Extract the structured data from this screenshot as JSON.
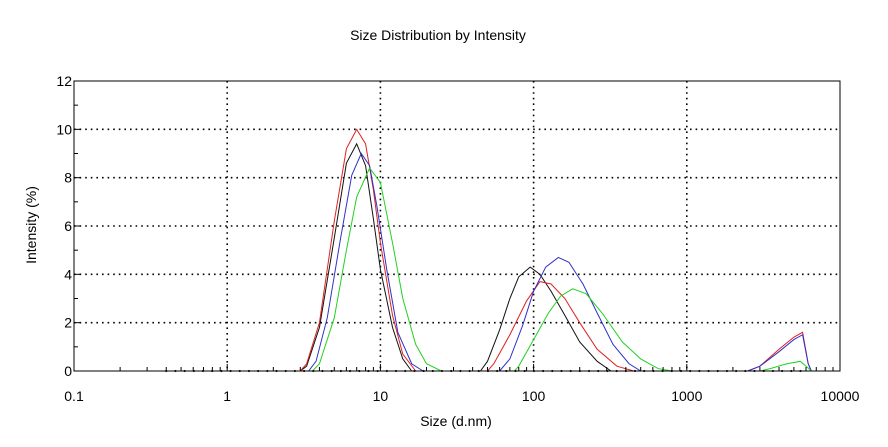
{
  "chart_data": {
    "type": "line",
    "title": "Size Distribution by Intensity",
    "xlabel": "Size (d.nm)",
    "ylabel": "Intensity (%)",
    "x_scale": "log",
    "xlim": [
      0.1,
      10000
    ],
    "ylim": [
      0,
      12
    ],
    "x_ticks": [
      {
        "value": 0.1,
        "label": "0.1"
      },
      {
        "value": 1,
        "label": "1"
      },
      {
        "value": 10,
        "label": "10"
      },
      {
        "value": 100,
        "label": "100"
      },
      {
        "value": 1000,
        "label": "1000"
      },
      {
        "value": 10000,
        "label": "10000"
      }
    ],
    "y_ticks": [
      {
        "value": 0,
        "label": "0"
      },
      {
        "value": 2,
        "label": "2"
      },
      {
        "value": 4,
        "label": "4"
      },
      {
        "value": 6,
        "label": "6"
      },
      {
        "value": 8,
        "label": "8"
      },
      {
        "value": 10,
        "label": "10"
      },
      {
        "value": 12,
        "label": "12"
      }
    ],
    "grid": true,
    "series": [
      {
        "color": "#111111",
        "points": [
          [
            0.4,
            0
          ],
          [
            3,
            0
          ],
          [
            3.3,
            0.2
          ],
          [
            4,
            1.8
          ],
          [
            5,
            5.5
          ],
          [
            6,
            8.6
          ],
          [
            7,
            9.4
          ],
          [
            8,
            8.5
          ],
          [
            9,
            6.3
          ],
          [
            10,
            4.2
          ],
          [
            12,
            1.8
          ],
          [
            14,
            0.5
          ],
          [
            16,
            0
          ],
          [
            45,
            0
          ],
          [
            50,
            0.4
          ],
          [
            60,
            1.7
          ],
          [
            70,
            3.0
          ],
          [
            80,
            3.9
          ],
          [
            95,
            4.3
          ],
          [
            110,
            4.0
          ],
          [
            130,
            3.3
          ],
          [
            160,
            2.3
          ],
          [
            200,
            1.2
          ],
          [
            260,
            0.4
          ],
          [
            320,
            0
          ]
        ]
      },
      {
        "color": "#e02020",
        "points": [
          [
            0.4,
            0
          ],
          [
            3,
            0
          ],
          [
            3.3,
            0.3
          ],
          [
            4,
            2.0
          ],
          [
            5,
            6.2
          ],
          [
            6,
            9.2
          ],
          [
            7,
            10.0
          ],
          [
            8,
            9.4
          ],
          [
            9,
            7.5
          ],
          [
            10,
            5.3
          ],
          [
            12,
            2.3
          ],
          [
            14,
            0.7
          ],
          [
            17,
            0
          ],
          [
            50,
            0
          ],
          [
            55,
            0.3
          ],
          [
            70,
            1.5
          ],
          [
            90,
            2.9
          ],
          [
            110,
            3.7
          ],
          [
            130,
            3.6
          ],
          [
            160,
            3.0
          ],
          [
            200,
            2.0
          ],
          [
            260,
            0.9
          ],
          [
            350,
            0.2
          ],
          [
            450,
            0
          ],
          [
            2500,
            0
          ],
          [
            3000,
            0.2
          ],
          [
            4000,
            0.9
          ],
          [
            5000,
            1.4
          ],
          [
            5700,
            1.6
          ],
          [
            6200,
            0.3
          ],
          [
            6500,
            0
          ]
        ]
      },
      {
        "color": "#3030c8",
        "points": [
          [
            0.4,
            0
          ],
          [
            3.4,
            0
          ],
          [
            3.8,
            0.4
          ],
          [
            4.5,
            2.2
          ],
          [
            5.5,
            5.5
          ],
          [
            6.5,
            8.1
          ],
          [
            7.5,
            9.0
          ],
          [
            8.5,
            8.5
          ],
          [
            9.5,
            6.8
          ],
          [
            11,
            4.2
          ],
          [
            13,
            1.6
          ],
          [
            16,
            0.3
          ],
          [
            19,
            0
          ],
          [
            60,
            0
          ],
          [
            70,
            0.5
          ],
          [
            85,
            1.9
          ],
          [
            100,
            3.3
          ],
          [
            120,
            4.3
          ],
          [
            145,
            4.7
          ],
          [
            170,
            4.5
          ],
          [
            210,
            3.6
          ],
          [
            260,
            2.4
          ],
          [
            330,
            1.1
          ],
          [
            420,
            0.3
          ],
          [
            500,
            0
          ],
          [
            2500,
            0
          ],
          [
            3000,
            0.2
          ],
          [
            4000,
            0.8
          ],
          [
            5000,
            1.3
          ],
          [
            5700,
            1.5
          ],
          [
            6200,
            0.3
          ],
          [
            6500,
            0
          ]
        ]
      },
      {
        "color": "#22d022",
        "points": [
          [
            0.4,
            0
          ],
          [
            3.6,
            0
          ],
          [
            4,
            0.3
          ],
          [
            5,
            2.2
          ],
          [
            6,
            5.0
          ],
          [
            7,
            7.2
          ],
          [
            8.5,
            8.4
          ],
          [
            10,
            7.8
          ],
          [
            12,
            5.3
          ],
          [
            14,
            3.0
          ],
          [
            17,
            1.1
          ],
          [
            20,
            0.3
          ],
          [
            25,
            0
          ],
          [
            75,
            0
          ],
          [
            80,
            0.2
          ],
          [
            100,
            1.3
          ],
          [
            125,
            2.4
          ],
          [
            150,
            3.1
          ],
          [
            180,
            3.4
          ],
          [
            220,
            3.2
          ],
          [
            280,
            2.4
          ],
          [
            380,
            1.2
          ],
          [
            500,
            0.5
          ],
          [
            650,
            0.1
          ],
          [
            800,
            0
          ],
          [
            3000,
            0
          ],
          [
            3500,
            0.1
          ],
          [
            4500,
            0.3
          ],
          [
            5500,
            0.4
          ],
          [
            6000,
            0.2
          ],
          [
            6500,
            0
          ]
        ]
      }
    ]
  }
}
